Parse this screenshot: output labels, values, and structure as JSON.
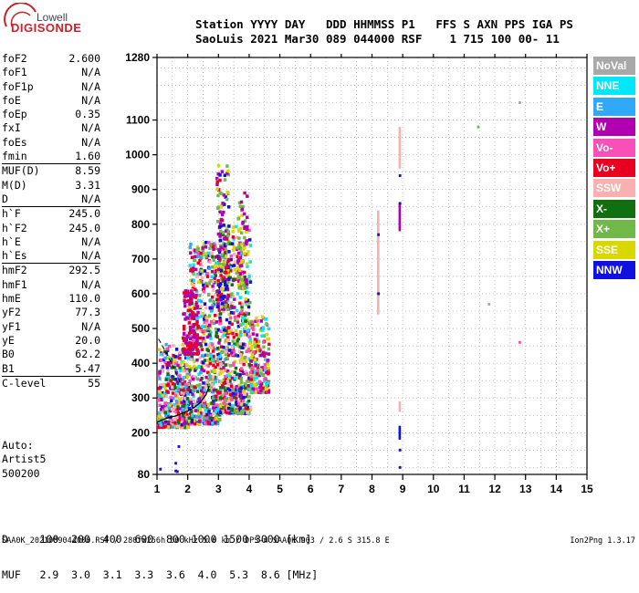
{
  "logo": {
    "top": "Lowell",
    "bottom": "DIGISONDE"
  },
  "header": {
    "line1": "Station YYYY DAY   DDD HHMMSS P1   FFS S AXN PPS IGA PS",
    "line2": "SaoLuis 2021 Mar30 089 044000 RSF    1 715 100 00- 11"
  },
  "params": [
    [
      {
        "k": "foF2",
        "v": "2.600"
      },
      {
        "k": "foF1",
        "v": "N/A"
      },
      {
        "k": "foF1p",
        "v": "N/A"
      },
      {
        "k": "foE",
        "v": "N/A"
      },
      {
        "k": "foEp",
        "v": "0.35"
      },
      {
        "k": "fxI",
        "v": "N/A"
      },
      {
        "k": "foEs",
        "v": "N/A"
      },
      {
        "k": "fmin",
        "v": "1.60"
      }
    ],
    [
      {
        "k": "MUF(D)",
        "v": "8.59"
      },
      {
        "k": "M(D)",
        "v": "3.31"
      },
      {
        "k": "D",
        "v": "N/A"
      }
    ],
    [
      {
        "k": "h`F",
        "v": "245.0"
      },
      {
        "k": "h`F2",
        "v": "245.0"
      },
      {
        "k": "h`E",
        "v": "N/A"
      },
      {
        "k": "h`Es",
        "v": "N/A"
      }
    ],
    [
      {
        "k": "hmF2",
        "v": "292.5"
      },
      {
        "k": "hmF1",
        "v": "N/A"
      },
      {
        "k": "hmE",
        "v": "110.0"
      },
      {
        "k": "yF2",
        "v": "77.3"
      },
      {
        "k": "yF1",
        "v": "N/A"
      },
      {
        "k": "yE",
        "v": "20.0"
      },
      {
        "k": "B0",
        "v": "62.2"
      },
      {
        "k": "B1",
        "v": "5.47"
      }
    ],
    [
      {
        "k": "C-level",
        "v": "55"
      }
    ]
  ],
  "auto": [
    "Auto:",
    "Artist5",
    "500200"
  ],
  "dmuf": {
    "line1": "D     100  200  400  600  800 1000 1500 3000 [km]",
    "line2": "MUF   2.9  3.0  3.1  3.3  3.6  4.0  5.3  8.6 [MHz]"
  },
  "footer": {
    "left": "SAA0K_2021089044000.RSF / 280fx256h 50 kHz 5.0 km / DPS-4 SAA0K 903 / 2.6 S 315.8 E",
    "right": "Ion2Png 1.3.17"
  },
  "legend": [
    {
      "label": "NoVal",
      "color": "#a8a8a8"
    },
    {
      "label": "NNE",
      "color": "#00e8f8"
    },
    {
      "label": "E",
      "color": "#30a8f8"
    },
    {
      "label": "W",
      "color": "#b000b0"
    },
    {
      "label": "Vo-",
      "color": "#f850b8"
    },
    {
      "label": "Vo+",
      "color": "#e80020"
    },
    {
      "label": "SSW",
      "color": "#f8b0b0"
    },
    {
      "label": "X-",
      "color": "#107010"
    },
    {
      "label": "X+",
      "color": "#70b848"
    },
    {
      "label": "SSE",
      "color": "#d8d800"
    },
    {
      "label": "NNW",
      "color": "#1010e0"
    }
  ],
  "chart_data": {
    "type": "scatter",
    "xlim": [
      1,
      15
    ],
    "ylim": [
      80,
      1280
    ],
    "x_ticks": [
      1,
      2,
      3,
      4,
      5,
      6,
      7,
      8,
      9,
      10,
      11,
      12,
      13,
      14,
      15
    ],
    "y_ticks": [
      80,
      200,
      300,
      400,
      500,
      600,
      700,
      800,
      900,
      1000,
      1100,
      1280
    ],
    "grid": true,
    "points": [
      {
        "x": 1.1,
        "y": 95,
        "c": "NNW"
      },
      {
        "x": 1.6,
        "y": 90,
        "c": "NNW"
      },
      {
        "x": 1.65,
        "y": 88,
        "c": "NNW"
      },
      {
        "x": 1.6,
        "y": 112,
        "c": "NNW"
      },
      {
        "x": 1.7,
        "y": 160,
        "c": "NNW"
      },
      {
        "x": 8.2,
        "y": 600,
        "c": "NNW"
      },
      {
        "x": 8.2,
        "y": 770,
        "c": "NNW"
      },
      {
        "x": 8.9,
        "y": 860,
        "c": "NNW"
      },
      {
        "x": 8.9,
        "y": 940,
        "c": "NNW"
      },
      {
        "x": 8.9,
        "y": 150,
        "c": "NNW"
      },
      {
        "x": 8.9,
        "y": 100,
        "c": "NNW"
      },
      {
        "x": 11.45,
        "y": 1080,
        "c": "X+"
      },
      {
        "x": 11.8,
        "y": 570,
        "c": "NoVal"
      },
      {
        "x": 12.8,
        "y": 1150,
        "c": "NoVal"
      },
      {
        "x": 12.8,
        "y": 460,
        "c": "Vo-"
      }
    ],
    "bands": [
      {
        "x": 8.2,
        "y0": 540,
        "y1": 840,
        "c": "SSW"
      },
      {
        "x": 8.9,
        "y0": 960,
        "y1": 1080,
        "c": "SSW"
      },
      {
        "x": 8.9,
        "y0": 780,
        "y1": 860,
        "c": "W"
      },
      {
        "x": 8.9,
        "y0": 260,
        "y1": 290,
        "c": "SSW"
      },
      {
        "x": 8.9,
        "y0": 180,
        "y1": 220,
        "c": "NNW"
      }
    ],
    "clouds": [
      {
        "x0": 1.0,
        "x1": 2.0,
        "y0": 220,
        "y1": 460,
        "n": 420,
        "palette": [
          "Vo+",
          "W",
          "Vo-",
          "NNE",
          "SSE",
          "X-",
          "NNW",
          "E",
          "SSW"
        ]
      },
      {
        "x0": 2.0,
        "x1": 3.0,
        "y0": 230,
        "y1": 760,
        "n": 620,
        "palette": [
          "Vo+",
          "W",
          "Vo-",
          "SSE",
          "X-",
          "X+",
          "NNW",
          "E",
          "NNE",
          "SSW"
        ]
      },
      {
        "x0": 3.0,
        "x1": 4.0,
        "y0": 260,
        "y1": 800,
        "n": 620,
        "palette": [
          "SSE",
          "W",
          "Vo-",
          "Vo+",
          "X+",
          "X-",
          "NNW",
          "NNE",
          "SSW"
        ]
      },
      {
        "x0": 4.0,
        "x1": 4.6,
        "y0": 320,
        "y1": 540,
        "n": 200,
        "palette": [
          "SSE",
          "W",
          "Vo-",
          "X+",
          "NNE",
          "Vo+"
        ]
      },
      {
        "x0": 1.8,
        "x1": 2.3,
        "y0": 430,
        "y1": 620,
        "n": 140,
        "palette": [
          "Vo+",
          "W"
        ]
      },
      {
        "x0": 2.9,
        "x1": 3.3,
        "y0": 560,
        "y1": 980,
        "n": 160,
        "palette": [
          "W",
          "Vo+",
          "SSE",
          "X+",
          "NNW"
        ]
      },
      {
        "x0": 3.6,
        "x1": 3.9,
        "y0": 620,
        "y1": 900,
        "n": 90,
        "palette": [
          "SSE",
          "X+",
          "W"
        ]
      }
    ],
    "trace": [
      [
        1.0,
        230
      ],
      [
        1.2,
        238
      ],
      [
        1.4,
        244
      ],
      [
        1.6,
        248
      ],
      [
        1.8,
        255
      ],
      [
        2.0,
        262
      ],
      [
        2.2,
        272
      ],
      [
        2.4,
        286
      ],
      [
        2.6,
        310
      ],
      [
        2.7,
        335
      ]
    ],
    "trace2": [
      [
        1.05,
        470
      ],
      [
        1.3,
        430
      ],
      [
        1.55,
        385
      ],
      [
        1.75,
        345
      ]
    ]
  }
}
